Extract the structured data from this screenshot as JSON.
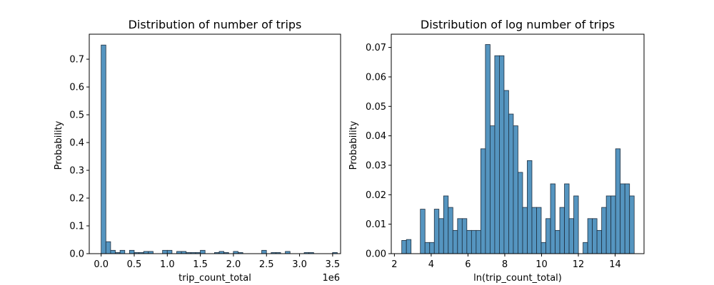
{
  "chart_data": [
    {
      "type": "bar",
      "title": "Distribution of number of trips",
      "xlabel": "trip_count_total",
      "ylabel": "Probability",
      "offset_label": "1e6",
      "xlim": [
        -0.18,
        3.62
      ],
      "ylim": [
        0,
        0.79
      ],
      "bin_start": 0.0,
      "bin_width": 0.0714,
      "x_ticks": [
        0.0,
        0.5,
        1.0,
        1.5,
        2.0,
        2.5,
        3.0,
        3.5
      ],
      "x_tick_labels": [
        "0.0",
        "0.5",
        "1.0",
        "1.5",
        "2.0",
        "2.5",
        "3.0",
        "3.5"
      ],
      "y_ticks": [
        0.0,
        0.1,
        0.2,
        0.3,
        0.4,
        0.5,
        0.6,
        0.7
      ],
      "y_tick_labels": [
        "0.0",
        "0.1",
        "0.2",
        "0.3",
        "0.4",
        "0.5",
        "0.6",
        "0.7"
      ],
      "values": [
        0.751,
        0.043,
        0.012,
        0.004,
        0.012,
        0,
        0.012,
        0.004,
        0.004,
        0.008,
        0.008,
        0,
        0,
        0.012,
        0.012,
        0,
        0.008,
        0.008,
        0.004,
        0.004,
        0.004,
        0.012,
        0,
        0,
        0.004,
        0.008,
        0.004,
        0,
        0.008,
        0.004,
        0,
        0,
        0,
        0,
        0.012,
        0,
        0.004,
        0.004,
        0,
        0.008,
        0,
        0,
        0,
        0.004,
        0.004,
        0,
        0,
        0,
        0,
        0.004
      ]
    },
    {
      "type": "bar",
      "title": "Distribution of log number of trips",
      "xlabel": "ln(trip_count_total)",
      "ylabel": "Probability",
      "xlim": [
        1.83,
        15.57
      ],
      "ylim": [
        0,
        0.0745
      ],
      "bin_start": 2.4,
      "bin_width": 0.2527,
      "x_ticks": [
        2,
        4,
        6,
        8,
        10,
        12,
        14
      ],
      "x_tick_labels": [
        "2",
        "4",
        "6",
        "8",
        "10",
        "12",
        "14"
      ],
      "y_ticks": [
        0.0,
        0.01,
        0.02,
        0.03,
        0.04,
        0.05,
        0.06,
        0.07
      ],
      "y_tick_labels": [
        "0.00",
        "0.01",
        "0.02",
        "0.03",
        "0.04",
        "0.05",
        "0.06",
        "0.07"
      ],
      "values": [
        0.0045,
        0.0048,
        0,
        0,
        0.0151,
        0.0038,
        0.0038,
        0.0151,
        0.0119,
        0.0196,
        0.0157,
        0.0079,
        0.0119,
        0.0119,
        0.0079,
        0.0079,
        0.0079,
        0.0356,
        0.071,
        0.0434,
        0.0672,
        0.0672,
        0.0554,
        0.0474,
        0.0434,
        0.0276,
        0.0157,
        0.0316,
        0.0157,
        0.0157,
        0.0038,
        0.0119,
        0.0237,
        0.0079,
        0.0157,
        0.0237,
        0.0119,
        0.0196,
        0,
        0.0038,
        0.0119,
        0.0119,
        0.0079,
        0.0157,
        0.0196,
        0.0196,
        0.0356,
        0.0237,
        0.0237,
        0.0196
      ]
    }
  ]
}
